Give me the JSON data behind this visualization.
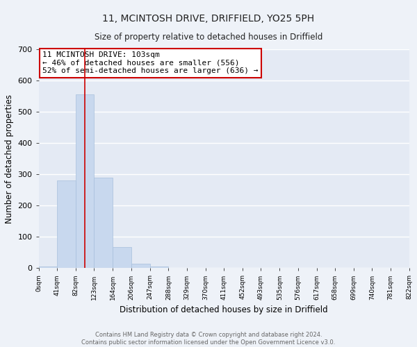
{
  "title": "11, MCINTOSH DRIVE, DRIFFIELD, YO25 5PH",
  "subtitle": "Size of property relative to detached houses in Driffield",
  "xlabel": "Distribution of detached houses by size in Driffield",
  "ylabel": "Number of detached properties",
  "bar_edges": [
    0,
    41,
    82,
    123,
    164,
    206,
    247,
    288,
    329,
    370,
    411,
    452,
    493,
    535,
    576,
    617,
    658,
    699,
    740,
    781,
    822
  ],
  "bar_heights": [
    5,
    280,
    556,
    290,
    68,
    14,
    5,
    0,
    0,
    0,
    0,
    0,
    0,
    0,
    0,
    0,
    0,
    0,
    0,
    0
  ],
  "tick_labels": [
    "0sqm",
    "41sqm",
    "82sqm",
    "123sqm",
    "164sqm",
    "206sqm",
    "247sqm",
    "288sqm",
    "329sqm",
    "370sqm",
    "411sqm",
    "452sqm",
    "493sqm",
    "535sqm",
    "576sqm",
    "617sqm",
    "658sqm",
    "699sqm",
    "740sqm",
    "781sqm",
    "822sqm"
  ],
  "bar_color": "#c8d8ee",
  "bar_edge_color": "#a8c0dc",
  "property_line_x": 103,
  "property_line_color": "#cc0000",
  "annotation_text": "11 MCINTOSH DRIVE: 103sqm\n← 46% of detached houses are smaller (556)\n52% of semi-detached houses are larger (636) →",
  "annotation_box_color": "#ffffff",
  "annotation_box_edge_color": "#cc0000",
  "ylim": [
    0,
    700
  ],
  "yticks": [
    0,
    100,
    200,
    300,
    400,
    500,
    600,
    700
  ],
  "background_color": "#eef2f8",
  "plot_background_color": "#e4eaf4",
  "grid_color": "#ffffff",
  "footnote": "Contains HM Land Registry data © Crown copyright and database right 2024.\nContains public sector information licensed under the Open Government Licence v3.0."
}
